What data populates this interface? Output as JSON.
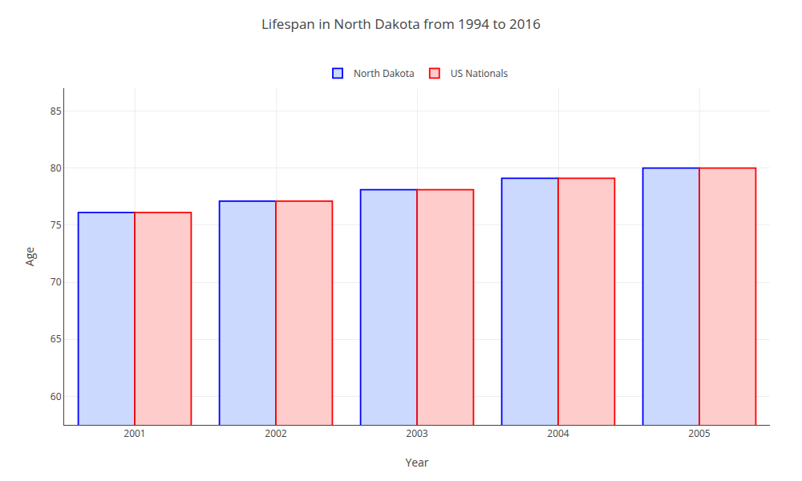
{
  "chart_data": {
    "type": "bar",
    "title": "Lifespan in North Dakota from 1994 to 2016",
    "xlabel": "Year",
    "ylabel": "Age",
    "categories": [
      "2001",
      "2002",
      "2003",
      "2004",
      "2005"
    ],
    "series": [
      {
        "name": "North Dakota",
        "color": "#ccd9ff",
        "values": [
          76.1,
          77.1,
          78.1,
          79.1,
          80.0
        ]
      },
      {
        "name": "US Nationals",
        "color": "#ffcccc",
        "values": [
          76.1,
          77.1,
          78.1,
          79.1,
          80.0
        ]
      }
    ],
    "ylim": [
      57.5,
      87
    ],
    "yticks": [
      60,
      65,
      70,
      75,
      80,
      85
    ],
    "grid": true,
    "legend": "top"
  }
}
